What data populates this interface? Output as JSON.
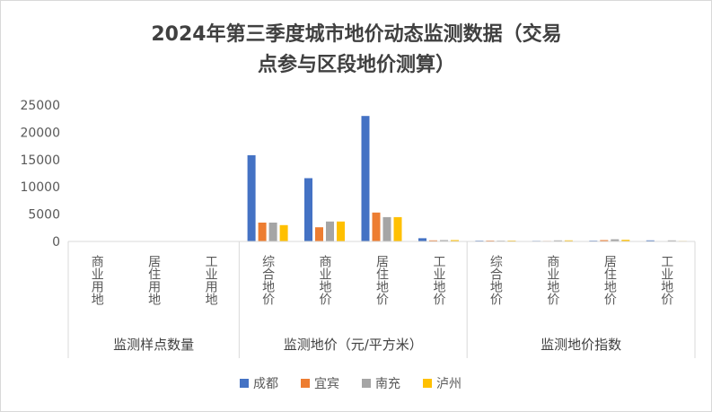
{
  "chart_data": {
    "type": "bar",
    "title_lines": [
      "2024年第三季度城市地价动态监测数据（交易",
      "点参与区段地价测算）"
    ],
    "y_ticks": [
      "0",
      "5000",
      "10000",
      "15000",
      "20000",
      "25000"
    ],
    "ylim": [
      0,
      25000
    ],
    "grid": false,
    "legend_position": "bottom",
    "categories": [
      "商业用地",
      "居住用地",
      "工业用地",
      "综合地价",
      "商业地价",
      "居住地价",
      "工业地价",
      "综合地价",
      "商业地价",
      "居住地价",
      "工业地价"
    ],
    "groups": [
      {
        "label": "监测样点数量"
      },
      {
        "label": "监测地价（元/平方米）"
      },
      {
        "label": "监测地价指数"
      }
    ],
    "series": [
      {
        "name": "成都",
        "color": "#4472C4",
        "values": [
          0,
          0,
          0,
          15800,
          11600,
          23000,
          600,
          150,
          120,
          150,
          200
        ]
      },
      {
        "name": "宜宾",
        "color": "#ED7D31",
        "values": [
          0,
          0,
          0,
          3450,
          2600,
          5300,
          200,
          160,
          100,
          250,
          80
        ]
      },
      {
        "name": "南充",
        "color": "#A5A5A5",
        "values": [
          0,
          0,
          0,
          3450,
          3650,
          4450,
          250,
          150,
          200,
          400,
          200
        ]
      },
      {
        "name": "泸州",
        "color": "#FFC000",
        "values": [
          0,
          0,
          0,
          3000,
          3650,
          4450,
          250,
          170,
          200,
          300,
          100
        ]
      }
    ]
  }
}
